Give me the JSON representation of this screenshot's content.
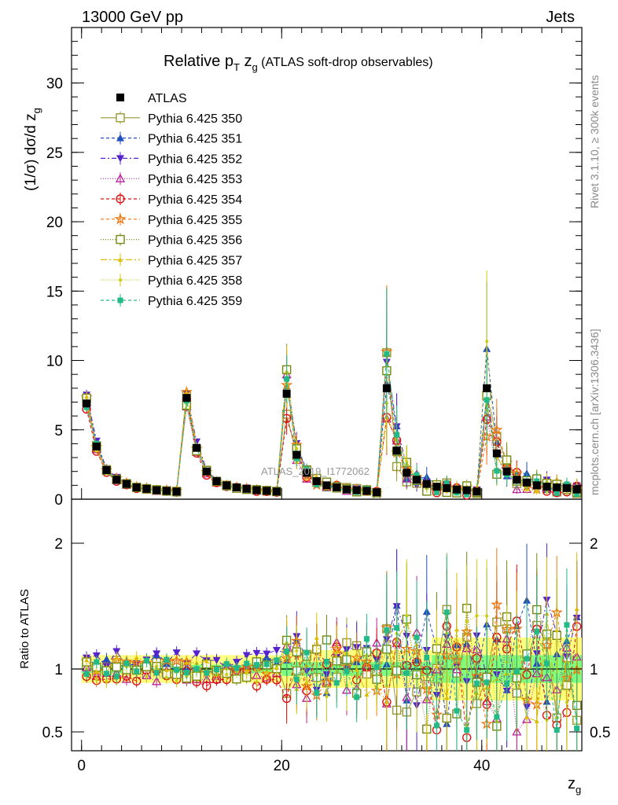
{
  "header": {
    "beam": "13000 GeV pp",
    "process": "Jets",
    "title_main": "Relative p",
    "title_sub_T": "T",
    "title_z": " z",
    "title_sub_g": "g",
    "title_rest": " (ATLAS soft-drop observables)",
    "watermark": "ATLAS_2019_I1772062"
  },
  "side_labels": {
    "rivet": "Rivet 3.1.10, ≥ 300k events",
    "mcplots": "mcplots.cern.ch [arXiv:1306.3436]"
  },
  "axes": {
    "ylabel_main": "(1/σ) dσ/d z",
    "ylabel_main_sub": "g",
    "ylabel_ratio": "Ratio to ATLAS",
    "xlabel": "z",
    "xlabel_sub": "g"
  },
  "chart_data": {
    "type": "scatter",
    "xlim": [
      -1,
      50
    ],
    "ylim_main": [
      0,
      34
    ],
    "ylim_ratio": [
      0.35,
      2.35
    ],
    "x_ticks": [
      0,
      20,
      40
    ],
    "y_ticks_main": [
      0,
      5,
      10,
      15,
      20,
      25,
      30
    ],
    "y_ticks_ratio": [
      0.5,
      1,
      2
    ],
    "ratio_band_colors": {
      "stat": "#7fff7f",
      "total": "#ffff7f"
    },
    "x": [
      0.5,
      1.5,
      2.5,
      3.5,
      4.5,
      5.5,
      6.5,
      7.5,
      8.5,
      9.5,
      10.5,
      11.5,
      12.5,
      13.5,
      14.5,
      15.5,
      16.5,
      17.5,
      18.5,
      19.5,
      20.5,
      21.5,
      22.5,
      23.5,
      24.5,
      25.5,
      26.5,
      27.5,
      28.5,
      29.5,
      30.5,
      31.5,
      32.5,
      33.5,
      34.5,
      35.5,
      36.5,
      37.5,
      38.5,
      39.5,
      40.5,
      41.5,
      42.5,
      43.5,
      44.5,
      45.5,
      46.5,
      47.5,
      48.5,
      49.5
    ],
    "reference": {
      "name": "ATLAS",
      "values": [
        6.9,
        3.8,
        2.1,
        1.4,
        1.1,
        0.85,
        0.75,
        0.65,
        0.6,
        0.55,
        7.3,
        3.7,
        2.0,
        1.3,
        1.0,
        0.85,
        0.75,
        0.65,
        0.6,
        0.55,
        7.6,
        3.2,
        1.9,
        1.3,
        1.0,
        0.85,
        0.7,
        0.65,
        0.6,
        0.5,
        8.0,
        3.5,
        1.9,
        1.4,
        1.1,
        0.9,
        0.8,
        0.7,
        0.65,
        0.55,
        8.0,
        3.3,
        2.0,
        1.4,
        1.2,
        1.0,
        0.9,
        0.85,
        0.8,
        0.7
      ]
    },
    "series": [
      {
        "name": "Pythia 6.425 350",
        "color": "#999933",
        "marker": "square-open",
        "dash": "solid",
        "scale": 1.0
      },
      {
        "name": "Pythia 6.425 351",
        "color": "#1f4fbf",
        "marker": "triangle-up",
        "dash": "4,3",
        "scale": 1.05
      },
      {
        "name": "Pythia 6.425 352",
        "color": "#5522cc",
        "marker": "triangle-down",
        "dash": "6,3,2,3",
        "scale": 1.08
      },
      {
        "name": "Pythia 6.425 353",
        "color": "#bb2299",
        "marker": "triangle-open",
        "dash": "1,2",
        "scale": 0.97
      },
      {
        "name": "Pythia 6.425 354",
        "color": "#dd1111",
        "marker": "circle-open",
        "dash": "4,3",
        "scale": 0.93
      },
      {
        "name": "Pythia 6.425 355",
        "color": "#ee7711",
        "marker": "star",
        "dash": "4,3",
        "scale": 1.02
      },
      {
        "name": "Pythia 6.425 356",
        "color": "#778811",
        "marker": "square-open",
        "dash": "1,2",
        "scale": 0.99
      },
      {
        "name": "Pythia 6.425 357",
        "color": "#ddbb00",
        "marker": "tri-small",
        "dash": "8,3,2,3",
        "scale": 1.04
      },
      {
        "name": "Pythia 6.425 358",
        "color": "#cccc11",
        "marker": "dot",
        "dash": "1,2",
        "scale": 0.96
      },
      {
        "name": "Pythia 6.425 359",
        "color": "#22bb88",
        "marker": "square",
        "dash": "4,3",
        "scale": 1.01
      }
    ]
  }
}
